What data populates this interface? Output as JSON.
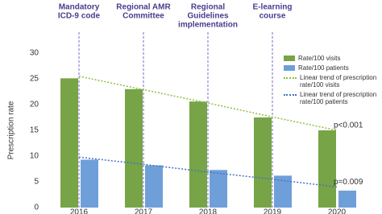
{
  "chart_data": {
    "type": "bar",
    "y_label": "Prescription rate",
    "categories": [
      "2016",
      "2017",
      "2018",
      "2019",
      "2020"
    ],
    "ylim": [
      0,
      30
    ],
    "yticks": [
      0,
      5,
      10,
      15,
      20,
      25,
      30
    ],
    "series": [
      {
        "name": "Rate/100 visits",
        "kind": "bar",
        "color": "#77a446",
        "values": [
          25.1,
          23,
          20.6,
          17.5,
          15
        ]
      },
      {
        "name": "Rate/100 patients",
        "kind": "bar",
        "color": "#6f9fd8",
        "values": [
          9.3,
          8.2,
          7.3,
          6.2,
          3.3
        ]
      },
      {
        "name": "Linear trend of prescription rate/100 visits",
        "kind": "trend",
        "color": "#8fbf3f",
        "values": [
          25.5,
          22.9,
          20.3,
          17.6,
          15
        ]
      },
      {
        "name": "Linear trend of prescription rate/100 patients",
        "kind": "trend",
        "color": "#4472c4",
        "values": [
          9.8,
          8.4,
          6.9,
          5.5,
          4
        ]
      }
    ],
    "events": [
      {
        "at": "2016",
        "lines": [
          "Mandatory",
          "ICD-9 code"
        ]
      },
      {
        "at": "2017",
        "lines": [
          "Regional AMR",
          "Committee"
        ]
      },
      {
        "at": "2018",
        "lines": [
          "Regional",
          "Guidelines",
          "implementation"
        ]
      },
      {
        "at": "2019",
        "lines": [
          "E-learning",
          "course"
        ]
      }
    ],
    "event_color": "#7b68c8",
    "p_values": [
      {
        "series": 2,
        "text": "p<0.001"
      },
      {
        "series": 3,
        "text": "p=0.009"
      }
    ]
  }
}
